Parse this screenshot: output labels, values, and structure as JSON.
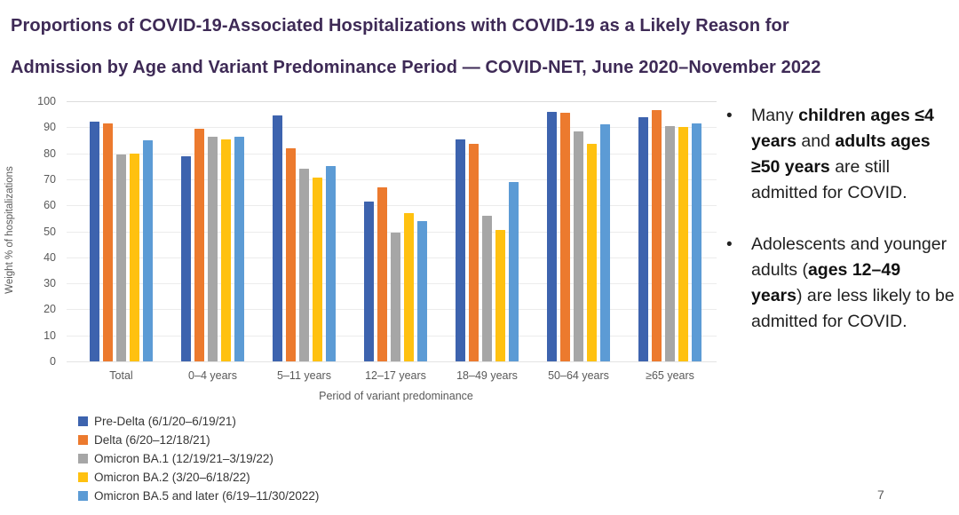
{
  "title": {
    "line1": "Proportions of COVID-19-Associated Hospitalizations with COVID-19 as a Likely Reason for",
    "line2": "Admission by Age and Variant Predominance Period — COVID-NET, June 2020–November 2022"
  },
  "page_number": "7",
  "bullets": [
    {
      "segments": [
        {
          "text": "Many ",
          "bold": false
        },
        {
          "text": "children ages ≤4 years",
          "bold": true
        },
        {
          "text": " and ",
          "bold": false
        },
        {
          "text": "adults ages ≥50 years",
          "bold": true
        },
        {
          "text": " are still admitted for COVID.",
          "bold": false
        }
      ]
    },
    {
      "segments": [
        {
          "text": "Adolescents and younger adults (",
          "bold": false
        },
        {
          "text": "ages 12–49 years",
          "bold": true
        },
        {
          "text": ") are less likely to be admitted for COVID.",
          "bold": false
        }
      ]
    }
  ],
  "chart_data": {
    "type": "bar",
    "title": "",
    "categories": [
      "Total",
      "0–4 years",
      "5–11 years",
      "12–17 years",
      "18–49 years",
      "50–64 years",
      "≥65 years"
    ],
    "series": [
      {
        "name": "Pre-Delta (6/1/20–6/19/21)",
        "color": "#3d63ae",
        "values": [
          92,
          79,
          94.5,
          61.5,
          85.5,
          96,
          94
        ]
      },
      {
        "name": "Delta (6/20–12/18/21)",
        "color": "#ec7a2e",
        "values": [
          91.5,
          89.5,
          82,
          67,
          83.5,
          95.5,
          96.5
        ]
      },
      {
        "name": "Omicron BA.1 (12/19/21–3/19/22)",
        "color": "#a6a6a6",
        "values": [
          79.5,
          86.5,
          74,
          49.5,
          56,
          88.5,
          90.5
        ]
      },
      {
        "name": "Omicron BA.2 (3/20–6/18/22)",
        "color": "#ffc110",
        "values": [
          80,
          85.5,
          70.5,
          57,
          50.5,
          83.5,
          90
        ]
      },
      {
        "name": "Omicron BA.5 and later (6/19–11/30/2022)",
        "color": "#5c9bd5",
        "values": [
          85,
          86.5,
          75,
          54,
          69,
          91,
          91.5
        ]
      }
    ],
    "xlabel": "Period of variant predominance",
    "ylabel": "Weight % of hospitalizations",
    "ylim": [
      0,
      100
    ],
    "yticks": [
      0,
      10,
      20,
      30,
      40,
      50,
      60,
      70,
      80,
      90,
      100
    ],
    "grid": true,
    "legend_position": "bottom-left"
  }
}
